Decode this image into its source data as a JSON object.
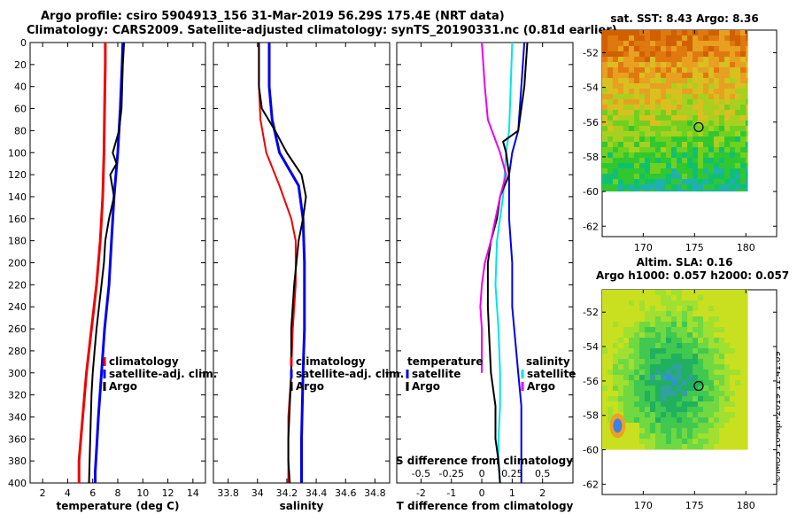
{
  "header": {
    "title_line1": "Argo profile: csiro 5904913_156 31-Mar-2019 56.29S 175.4E (NRT data)",
    "title_line2": "Climatology: CARS2009. Satellite-adjusted climatology: synTS_20190331.nc (0.81d earlier)"
  },
  "credit": "©IMOS 10-Apr-2019 11:41:09",
  "colors": {
    "climatology": "#ee0000",
    "satellite": "#0000ee",
    "argo": "#000000",
    "salinity_satellite": "#00e5e5",
    "salinity_diff_argo": "#ee00ee"
  },
  "chart_data": [
    {
      "type": "line",
      "name": "temperature",
      "xlabel": "temperature (deg C)",
      "ylabel": "depth",
      "xlim": [
        1,
        15
      ],
      "ylim": [
        400,
        0
      ],
      "xticks": [
        "2",
        "4",
        "6",
        "8",
        "10",
        "12",
        "14"
      ],
      "xtick_values": [
        2,
        4,
        6,
        8,
        10,
        12,
        14
      ],
      "yticks": [
        "0",
        "20",
        "40",
        "60",
        "80",
        "100",
        "120",
        "140",
        "160",
        "180",
        "200",
        "220",
        "240",
        "260",
        "280",
        "300",
        "320",
        "340",
        "360",
        "380",
        "400"
      ],
      "ytick_values": [
        0,
        20,
        40,
        60,
        80,
        100,
        120,
        140,
        160,
        180,
        200,
        220,
        240,
        260,
        280,
        300,
        320,
        340,
        360,
        380,
        400
      ],
      "legend": [
        "climatology",
        "satellite-adj. clim.",
        "Argo"
      ],
      "series": [
        {
          "name": "climatology",
          "color": "#ee0000",
          "width": 3,
          "x": [
            7.0,
            7.0,
            6.95,
            6.9,
            6.8,
            6.6,
            6.3,
            5.9,
            5.5,
            5.2,
            4.9,
            4.9
          ],
          "y": [
            0,
            20,
            60,
            100,
            140,
            180,
            220,
            260,
            300,
            340,
            380,
            400
          ]
        },
        {
          "name": "satellite-adj. clim.",
          "color": "#0000ee",
          "width": 3,
          "x": [
            8.4,
            8.35,
            8.2,
            8.0,
            7.7,
            7.5,
            7.3,
            6.95,
            6.7,
            6.45,
            6.3,
            6.2,
            6.2
          ],
          "y": [
            0,
            20,
            60,
            100,
            140,
            180,
            220,
            260,
            300,
            340,
            370,
            390,
            400
          ]
        },
        {
          "name": "Argo",
          "color": "#000000",
          "width": 2,
          "x": [
            8.5,
            8.4,
            8.3,
            8.1,
            7.6,
            7.9,
            7.4,
            7.7,
            7.3,
            7.0,
            6.9,
            6.7,
            6.5,
            6.3,
            6.15,
            6.0,
            5.9,
            5.85,
            5.8,
            5.75,
            5.7
          ],
          "y": [
            0,
            20,
            60,
            80,
            100,
            110,
            120,
            140,
            160,
            180,
            200,
            220,
            240,
            260,
            280,
            300,
            320,
            340,
            360,
            380,
            400
          ]
        }
      ]
    },
    {
      "type": "line",
      "name": "salinity",
      "xlabel": "salinity",
      "xlim": [
        33.7,
        34.9
      ],
      "ylim": [
        400,
        0
      ],
      "xticks": [
        "33.8",
        "34",
        "34.2",
        "34.4",
        "34.6",
        "34.8"
      ],
      "xtick_values": [
        33.8,
        34.0,
        34.2,
        34.4,
        34.6,
        34.8
      ],
      "legend": [
        "climatology",
        "satellite-adj. clim.",
        "Argo"
      ],
      "series": [
        {
          "name": "climatology",
          "color": "#ee0000",
          "width": 2,
          "x": [
            34.01,
            34.01,
            34.02,
            34.06,
            34.15,
            34.23,
            34.26,
            34.26,
            34.24,
            34.23,
            34.21,
            34.21,
            34.21
          ],
          "y": [
            0,
            40,
            70,
            100,
            130,
            160,
            180,
            220,
            260,
            300,
            340,
            380,
            400
          ]
        },
        {
          "name": "satellite-adj. clim.",
          "color": "#0000ee",
          "width": 3,
          "x": [
            34.08,
            34.08,
            34.1,
            34.15,
            34.28,
            34.31,
            34.32,
            34.32,
            34.31,
            34.3,
            34.3
          ],
          "y": [
            0,
            40,
            70,
            100,
            130,
            160,
            200,
            260,
            300,
            360,
            400
          ]
        },
        {
          "name": "Argo",
          "color": "#000000",
          "width": 2,
          "x": [
            34.01,
            34.01,
            34.03,
            34.12,
            34.2,
            34.3,
            34.33,
            34.31,
            34.28,
            34.25,
            34.23,
            34.23,
            34.22,
            34.21,
            34.21,
            34.22
          ],
          "y": [
            0,
            40,
            60,
            80,
            100,
            120,
            140,
            160,
            180,
            220,
            260,
            300,
            330,
            360,
            380,
            400
          ]
        }
      ]
    },
    {
      "type": "line",
      "name": "differences",
      "xlabel": "T difference from climatology",
      "top_label": "S difference from climatology",
      "xlim": [
        -2.8,
        3.0
      ],
      "ylim": [
        400,
        0
      ],
      "xticks": [
        "-2",
        "-1",
        "0",
        "1",
        "2"
      ],
      "xtick_values": [
        -2,
        -1,
        0,
        1,
        2
      ],
      "sticks": [
        "-0.5",
        "-0.25",
        "0",
        "0.25",
        "0.5"
      ],
      "stick_values": [
        -2.0,
        -1.0,
        0.0,
        1.0,
        2.0
      ],
      "legend_temperature": {
        "title": "temperature",
        "items": [
          "satellite",
          "Argo"
        ]
      },
      "legend_salinity": {
        "title": "salinity",
        "items": [
          "satellite",
          "Argo"
        ]
      },
      "series": [
        {
          "name": "T satellite",
          "color": "#0000ee",
          "width": 2,
          "x": [
            1.4,
            1.3,
            1.2,
            1.0,
            0.9,
            0.9,
            1.0,
            1.0,
            1.1,
            1.2,
            1.3,
            1.3,
            1.3,
            1.3
          ],
          "y": [
            0,
            40,
            80,
            100,
            120,
            160,
            200,
            240,
            270,
            300,
            330,
            360,
            380,
            400
          ]
        },
        {
          "name": "S satellite",
          "color": "#00e5e5",
          "width": 2,
          "x": [
            1.0,
            0.95,
            0.9,
            0.8,
            0.7,
            0.5,
            0.45,
            0.55,
            0.6,
            0.6,
            0.55,
            0.55,
            0.6
          ],
          "y": [
            0,
            40,
            80,
            100,
            140,
            180,
            220,
            260,
            300,
            330,
            360,
            380,
            400
          ]
        },
        {
          "name": "T Argo",
          "color": "#000000",
          "width": 2,
          "x": [
            1.5,
            1.4,
            1.2,
            0.7,
            0.8,
            0.9,
            0.6,
            0.5,
            0.3,
            0.2,
            0.2,
            0.25,
            0.3,
            0.45,
            0.45,
            0.55,
            0.6
          ],
          "y": [
            0,
            40,
            80,
            90,
            100,
            120,
            140,
            160,
            180,
            200,
            240,
            270,
            300,
            330,
            360,
            380,
            400
          ]
        },
        {
          "name": "S Argo",
          "color": "#ee00ee",
          "width": 2,
          "x": [
            0.0,
            0.1,
            0.2,
            0.6,
            0.7,
            0.8,
            0.6,
            0.45,
            0.3,
            0.1,
            0.0,
            -0.05,
            0.0,
            0.0
          ],
          "y": [
            0,
            40,
            70,
            100,
            110,
            120,
            140,
            160,
            180,
            200,
            220,
            240,
            260,
            300
          ]
        }
      ]
    },
    {
      "type": "heatmap",
      "name": "sst_map",
      "title": "sat. SST: 8.43  Argo: 8.36",
      "xlim": [
        166,
        183
      ],
      "ylim": [
        -62.6,
        -50.7
      ],
      "xticks": [
        "170",
        "175",
        "180"
      ],
      "xtick_values": [
        170,
        175,
        180
      ],
      "yticks": [
        "-52",
        "-54",
        "-56",
        "-58",
        "-60",
        "-62"
      ],
      "ytick_values": [
        -52,
        -54,
        -56,
        -58,
        -60,
        -62
      ],
      "data_extent": {
        "lon": [
          166,
          180.2
        ],
        "lat": [
          -60,
          -50.7
        ]
      },
      "marker": {
        "lon": 175.4,
        "lat": -56.29
      }
    },
    {
      "type": "heatmap",
      "name": "sla_map",
      "title": "Altim. SLA: 0.16",
      "subtitle": "Argo h1000: 0.057 h2000: 0.057",
      "xlim": [
        166,
        183
      ],
      "ylim": [
        -62.6,
        -50.7
      ],
      "xticks": [
        "170",
        "175",
        "180"
      ],
      "xtick_values": [
        170,
        175,
        180
      ],
      "yticks": [
        "-52",
        "-54",
        "-56",
        "-58",
        "-60",
        "-62"
      ],
      "ytick_values": [
        -52,
        -54,
        -56,
        -58,
        -60,
        -62
      ],
      "data_extent": {
        "lon": [
          166,
          180.2
        ],
        "lat": [
          -60,
          -50.7
        ]
      },
      "marker": {
        "lon": 175.4,
        "lat": -56.29
      }
    }
  ]
}
